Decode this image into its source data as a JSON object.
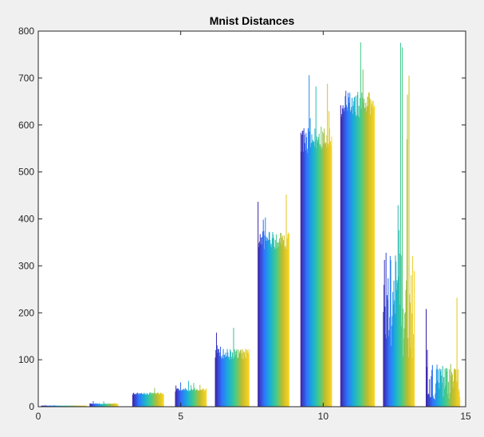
{
  "chart_data": {
    "type": "bar",
    "title": "Mnist Distances",
    "xlabel": "",
    "ylabel": "",
    "xlim": [
      0,
      15
    ],
    "ylim": [
      0,
      800
    ],
    "xticks": [
      0,
      5,
      10,
      15
    ],
    "yticks": [
      0,
      100,
      200,
      300,
      400,
      500,
      600,
      700,
      800
    ],
    "grid": false,
    "legend": "none",
    "colormap": [
      "#3e26a8",
      "#2f74ff",
      "#19b2d3",
      "#48cb86",
      "#c2bc2a",
      "#f9d425"
    ],
    "bins": [
      {
        "start": 0.1,
        "end": 1.7,
        "base": 2,
        "peak": 3
      },
      {
        "start": 1.8,
        "end": 2.8,
        "base": 5,
        "peak": 12
      },
      {
        "start": 3.3,
        "end": 4.4,
        "base": 25,
        "peak": 40
      },
      {
        "start": 4.8,
        "end": 5.9,
        "base": 32,
        "peak": 55
      },
      {
        "start": 6.2,
        "end": 7.4,
        "base": 100,
        "peak": 168
      },
      {
        "start": 7.7,
        "end": 8.8,
        "base": 335,
        "peak": 452
      },
      {
        "start": 9.2,
        "end": 10.3,
        "base": 540,
        "peak": 706
      },
      {
        "start": 10.6,
        "end": 11.8,
        "base": 615,
        "peak": 776
      },
      {
        "start": 12.1,
        "end": 13.2,
        "base": 100,
        "peak": 775
      },
      {
        "start": 13.6,
        "end": 14.8,
        "base": 15,
        "peak": 232
      }
    ]
  }
}
